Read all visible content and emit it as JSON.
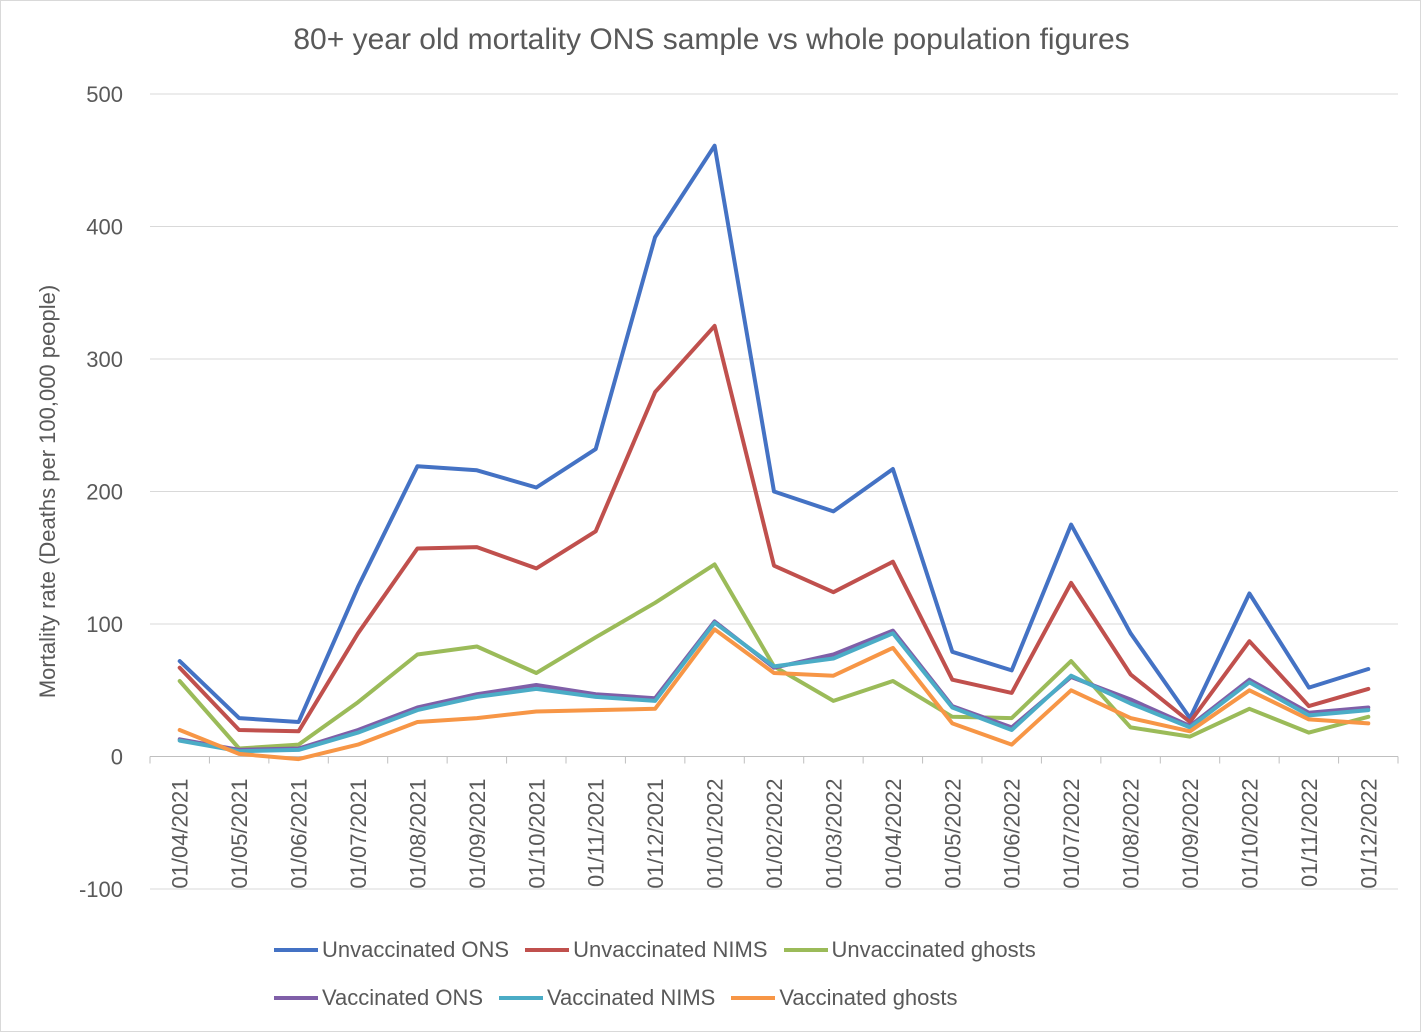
{
  "chart_data": {
    "type": "line",
    "title": "80+ year old mortality ONS sample vs whole population figures",
    "ylabel": "Mortality rate (Deaths per 100,000 people)",
    "xlabel": "",
    "ylim": [
      -100,
      500
    ],
    "yticks": [
      500,
      400,
      300,
      200,
      100,
      0,
      -100
    ],
    "grid": true,
    "legend_position": "bottom",
    "categories": [
      "01/04/2021",
      "01/05/2021",
      "01/06/2021",
      "01/07/2021",
      "01/08/2021",
      "01/09/2021",
      "01/10/2021",
      "01/11/2021",
      "01/12/2021",
      "01/01/2022",
      "01/02/2022",
      "01/03/2022",
      "01/04/2022",
      "01/05/2022",
      "01/06/2022",
      "01/07/2022",
      "01/08/2022",
      "01/09/2022",
      "01/10/2022",
      "01/11/2022",
      "01/12/2022"
    ],
    "series": [
      {
        "name": "Unvaccinated ONS",
        "color": "#4472c4",
        "values": [
          72,
          29,
          26,
          128,
          219,
          216,
          203,
          232,
          392,
          461,
          200,
          185,
          217,
          79,
          65,
          175,
          93,
          29,
          123,
          52,
          66
        ]
      },
      {
        "name": "Unvaccinated NIMS",
        "color": "#c0504d",
        "values": [
          67,
          20,
          19,
          93,
          157,
          158,
          142,
          170,
          275,
          325,
          144,
          124,
          147,
          58,
          48,
          131,
          62,
          26,
          87,
          38,
          51
        ]
      },
      {
        "name": "Unvaccinated ghosts",
        "color": "#9bbb59",
        "values": [
          57,
          6,
          9,
          41,
          77,
          83,
          63,
          90,
          116,
          145,
          68,
          42,
          57,
          30,
          29,
          72,
          22,
          15,
          36,
          18,
          30
        ]
      },
      {
        "name": "Vaccinated ONS",
        "color": "#7f5fa8",
        "values": [
          13,
          5,
          6,
          20,
          37,
          47,
          54,
          47,
          44,
          102,
          67,
          77,
          95,
          38,
          22,
          60,
          43,
          23,
          58,
          33,
          37
        ]
      },
      {
        "name": "Vaccinated NIMS",
        "color": "#4bacc6",
        "values": [
          12,
          4,
          5,
          18,
          35,
          45,
          51,
          45,
          42,
          101,
          68,
          74,
          93,
          37,
          20,
          61,
          40,
          22,
          56,
          31,
          35
        ]
      },
      {
        "name": "Vaccinated ghosts",
        "color": "#f79646",
        "values": [
          20,
          2,
          -2,
          9,
          26,
          29,
          34,
          35,
          36,
          96,
          63,
          61,
          82,
          25,
          9,
          50,
          29,
          19,
          50,
          28,
          25
        ]
      }
    ]
  }
}
